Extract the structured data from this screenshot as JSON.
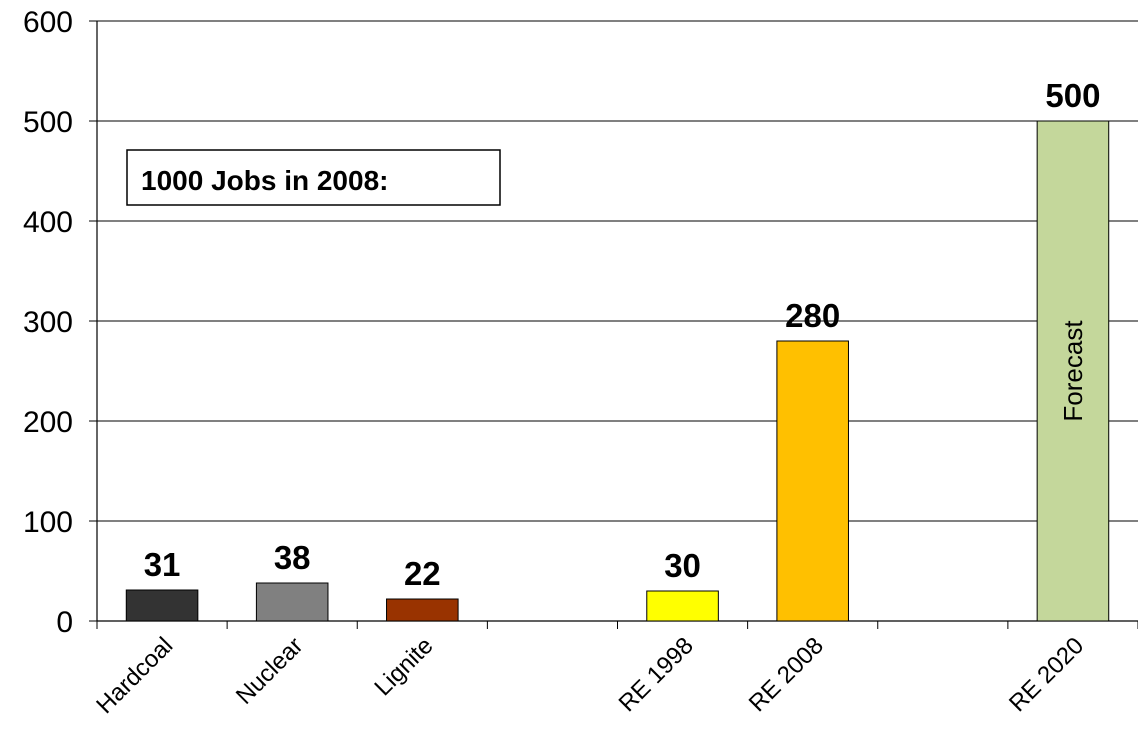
{
  "chart_data": {
    "type": "bar",
    "categories": [
      "Hardcoal",
      "Nuclear",
      "Lignite",
      "",
      "RE 1998",
      "RE 2008",
      "",
      "RE 2020"
    ],
    "values": [
      31,
      38,
      22,
      null,
      30,
      280,
      null,
      500
    ],
    "colors": [
      "#333333",
      "#808080",
      "#993300",
      null,
      "#ffff00",
      "#ffc000",
      null,
      "#c4d79b"
    ],
    "data_labels": [
      "31",
      "38",
      "22",
      "",
      "30",
      "280",
      "",
      "500"
    ],
    "bar_notes": [
      "",
      "",
      "",
      "",
      "",
      "",
      "",
      "Forecast"
    ],
    "ylim": [
      0,
      600
    ],
    "yticks": [
      0,
      100,
      200,
      300,
      400,
      500,
      600
    ],
    "grid": true,
    "text_box": "1000 Jobs in 2008:"
  }
}
